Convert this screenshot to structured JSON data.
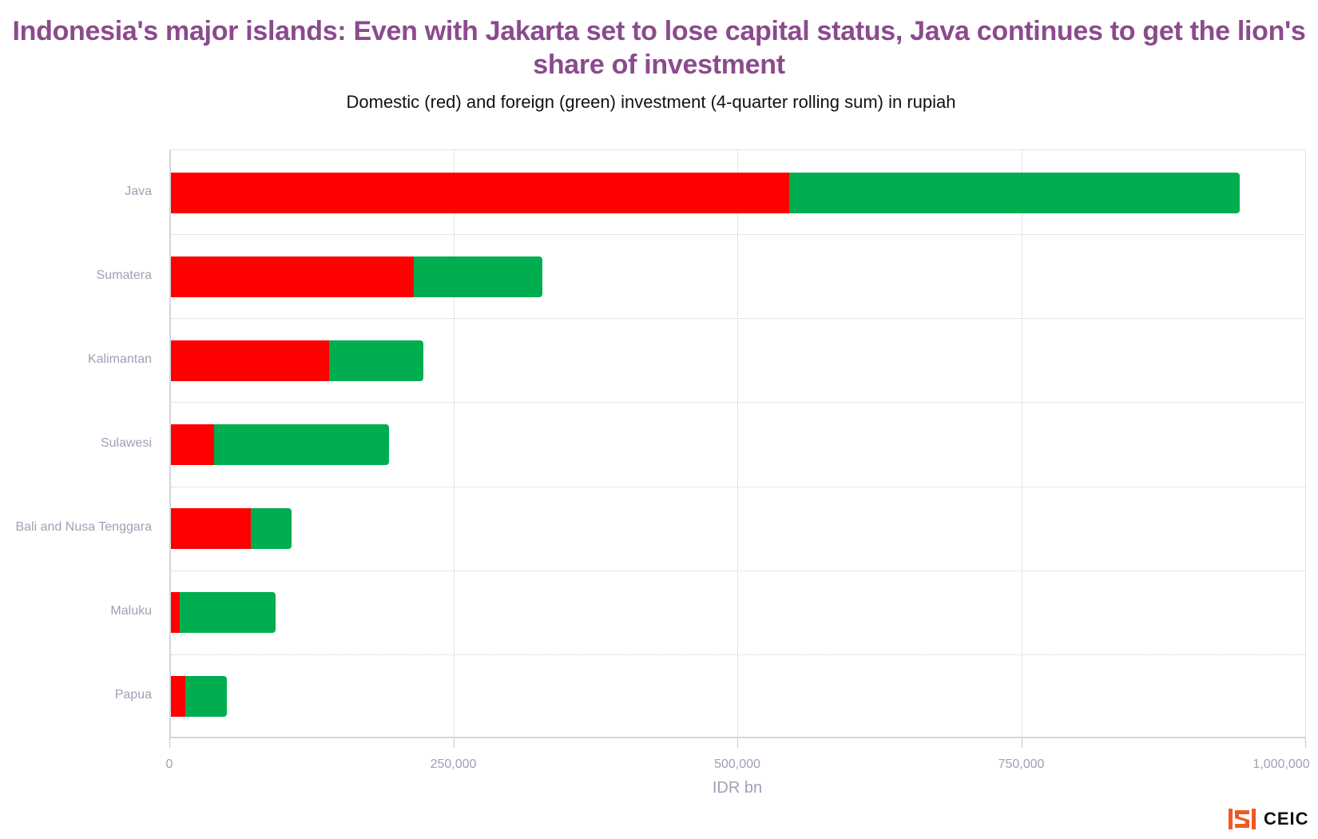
{
  "header": {
    "title": "Indonesia's major islands: Even with Jakarta set to lose capital status, Java continues to get the lion's share of investment",
    "subtitle": "Domestic (red) and foreign (green) investment (4-quarter rolling sum) in rupiah"
  },
  "axis": {
    "x_title": "IDR bn",
    "ticks": [
      "0",
      "250,000",
      "500,000",
      "750,000",
      "1,000,000"
    ]
  },
  "colors": {
    "domestic": "#ff0000",
    "foreign": "#00ad4f",
    "title": "#8b4a8e"
  },
  "categories": [
    "Java",
    "Sumatera",
    "Kalimantan",
    "Sulawesi",
    "Bali and Nusa Tenggara",
    "Maluku",
    "Papua"
  ],
  "footer": {
    "brand": "CEIC"
  },
  "chart_data": {
    "type": "bar",
    "orientation": "horizontal",
    "stacked": true,
    "title": "Indonesia's major islands: Even with Jakarta set to lose capital status, Java continues to get the lion's share of investment",
    "subtitle": "Domestic (red) and foreign (green) investment (4-quarter rolling sum) in rupiah",
    "categories": [
      "Java",
      "Sumatera",
      "Kalimantan",
      "Sulawesi",
      "Bali and Nusa Tenggara",
      "Maluku",
      "Papua"
    ],
    "series": [
      {
        "name": "Domestic",
        "color": "#ff0000",
        "values": [
          544000,
          214000,
          139000,
          38000,
          70000,
          8000,
          13000
        ]
      },
      {
        "name": "Foreign",
        "color": "#00ad4f",
        "values": [
          397000,
          113000,
          83000,
          154000,
          36000,
          84000,
          36000
        ]
      }
    ],
    "xlabel": "IDR bn",
    "ylabel": "",
    "xlim": [
      0,
      1000000
    ],
    "xticks": [
      0,
      250000,
      500000,
      750000,
      1000000
    ],
    "grid": true,
    "legend": "none (described in subtitle)",
    "source": "CEIC"
  }
}
